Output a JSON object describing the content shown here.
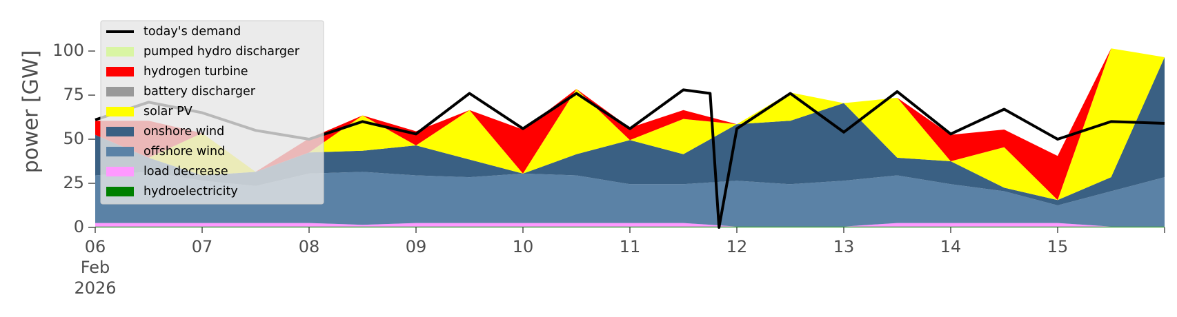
{
  "chart_data": {
    "type": "area",
    "stacked": true,
    "ylabel": "power [GW]",
    "ylim": [
      0,
      118
    ],
    "yticks": [
      0,
      25,
      50,
      75,
      100
    ],
    "xlim": [
      "2026-02-06T00:00",
      "2026-02-16T00:00"
    ],
    "xticks": [
      {
        "t": "2026-02-06T00:00",
        "label": "06",
        "sub": [
          "Feb",
          "2026"
        ]
      },
      {
        "t": "2026-02-07T00:00",
        "label": "07"
      },
      {
        "t": "2026-02-08T00:00",
        "label": "08"
      },
      {
        "t": "2026-02-09T00:00",
        "label": "09"
      },
      {
        "t": "2026-02-10T00:00",
        "label": "10"
      },
      {
        "t": "2026-02-11T00:00",
        "label": "11"
      },
      {
        "t": "2026-02-12T00:00",
        "label": "12"
      },
      {
        "t": "2026-02-13T00:00",
        "label": "13"
      },
      {
        "t": "2026-02-14T00:00",
        "label": "14"
      },
      {
        "t": "2026-02-15T00:00",
        "label": "15"
      }
    ],
    "grid": false,
    "legend_position": "upper-left",
    "x": [
      "2026-02-06T00:00",
      "2026-02-06T12:00",
      "2026-02-07T00:00",
      "2026-02-07T12:00",
      "2026-02-08T00:00",
      "2026-02-08T12:00",
      "2026-02-09T00:00",
      "2026-02-09T12:00",
      "2026-02-10T00:00",
      "2026-02-10T12:00",
      "2026-02-11T00:00",
      "2026-02-11T12:00",
      "2026-02-12T00:00",
      "2026-02-12T12:00",
      "2026-02-13T00:00",
      "2026-02-13T12:00",
      "2026-02-14T00:00",
      "2026-02-14T12:00",
      "2026-02-15T00:00",
      "2026-02-15T12:00",
      "2026-02-16T00:00"
    ],
    "series": [
      {
        "name": "hydroelectricity",
        "color": "#008000",
        "values": [
          0.5,
          0.5,
          0.5,
          0.5,
          0.5,
          0.5,
          0.5,
          0.5,
          0.5,
          0.5,
          0.5,
          0.5,
          0.5,
          0.5,
          0.5,
          0.5,
          0.5,
          0.5,
          0.5,
          0.5,
          0.5
        ]
      },
      {
        "name": "load decrease",
        "color": "#ff99ff",
        "values": [
          2,
          2,
          2,
          2,
          2,
          1,
          2,
          2,
          2,
          2,
          2,
          2,
          0,
          0,
          0,
          2,
          2,
          2,
          2,
          0,
          0
        ]
      },
      {
        "name": "offshore wind",
        "color": "#5b82a6",
        "values": [
          27,
          29,
          24,
          21,
          28,
          30,
          27,
          26,
          28,
          27,
          22,
          22,
          26,
          24,
          26,
          27,
          22,
          18,
          10,
          20,
          28
        ]
      },
      {
        "name": "onshore wind",
        "color": "#3a6083",
        "values": [
          23,
          8,
          3,
          8,
          12,
          12,
          17,
          10,
          0,
          12,
          25,
          17,
          32,
          36,
          44,
          10,
          13,
          2,
          3,
          8,
          68
        ]
      },
      {
        "name": "solar PV",
        "color": "#ffff00",
        "values": [
          0,
          0,
          24,
          0,
          0,
          20,
          0,
          28,
          0,
          37,
          0,
          20,
          0,
          16,
          0,
          34,
          0,
          23,
          0,
          73,
          0
        ]
      },
      {
        "name": "battery discharger",
        "color": "#999999",
        "values": [
          0,
          0,
          0,
          0,
          0,
          0,
          0,
          0,
          0,
          0,
          0,
          0,
          0,
          0,
          0,
          0,
          0,
          0,
          0,
          0,
          0
        ]
      },
      {
        "name": "hydrogen turbine",
        "color": "#ff0000",
        "values": [
          8,
          21,
          0,
          0,
          8,
          0,
          8,
          0,
          25,
          0,
          7,
          5,
          0,
          0,
          0,
          0,
          15,
          10,
          25,
          0,
          0
        ]
      },
      {
        "name": "pumped hydro discharger",
        "color": "#d9f5a3",
        "values": [
          0,
          0,
          0,
          0,
          0,
          0,
          0,
          0,
          0,
          0,
          0,
          0,
          0,
          0,
          0,
          0,
          0,
          0,
          0,
          0,
          0
        ]
      }
    ],
    "demand": {
      "name": "today's demand",
      "color": "#000000",
      "x": [
        "2026-02-06T00:00",
        "2026-02-06T12:00",
        "2026-02-07T00:00",
        "2026-02-07T12:00",
        "2026-02-08T00:00",
        "2026-02-08T12:00",
        "2026-02-09T00:00",
        "2026-02-09T12:00",
        "2026-02-10T00:00",
        "2026-02-10T12:00",
        "2026-02-11T00:00",
        "2026-02-11T12:00",
        "2026-02-11T18:00",
        "2026-02-11T20:00",
        "2026-02-12T00:00",
        "2026-02-12T12:00",
        "2026-02-13T00:00",
        "2026-02-13T12:00",
        "2026-02-14T00:00",
        "2026-02-14T12:00",
        "2026-02-15T00:00",
        "2026-02-15T12:00",
        "2026-02-16T00:00"
      ],
      "values": [
        61,
        71,
        65,
        55,
        50,
        60,
        53,
        76,
        56,
        76,
        56,
        78,
        76,
        0,
        56,
        76,
        54,
        77,
        53,
        67,
        50,
        60,
        59
      ]
    },
    "legend": [
      "today's demand",
      "pumped hydro discharger",
      "hydrogen turbine",
      "battery discharger",
      "solar PV",
      "onshore wind",
      "offshore wind",
      "load decrease",
      "hydroelectricity"
    ]
  }
}
